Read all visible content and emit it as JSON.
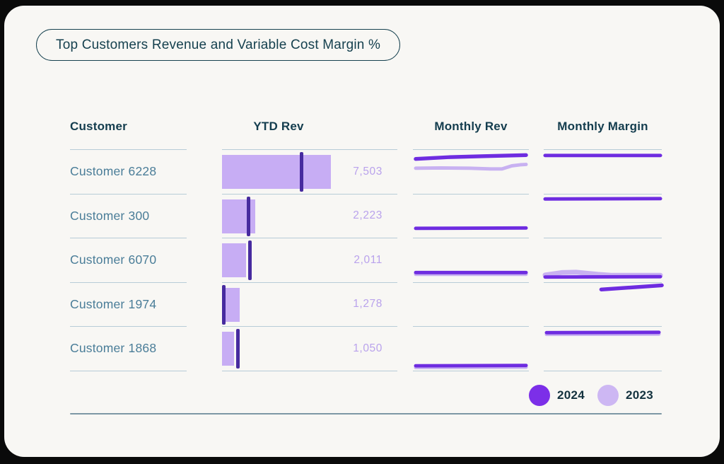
{
  "title": "Top Customers Revenue and Variable Cost Margin %",
  "header": {
    "customer": "Customer",
    "ytd": "YTD Rev",
    "monthly_rev": "Monthly Rev",
    "monthly_margin": "Monthly Margin"
  },
  "legend": {
    "item_2024": "2024",
    "item_2023": "2023"
  },
  "colors": {
    "legend_2024": "#7c2fe8",
    "legend_2023": "#cdb7f3",
    "spark_2024": "#6e2ce0",
    "spark_2023": "#c8b1f1",
    "bar_2023": "#c7adf4",
    "tick_2024": "#472b9f",
    "value_text": "#b9a2ec",
    "teal_dark": "#143d4e",
    "divider": "#b7ccd7"
  },
  "rows": [
    {
      "customer": "Customer 6228",
      "ytd_value": "7,503",
      "bar_w": "62%",
      "tick_x": "44.5%",
      "rev": [
        {
          "year": "2023",
          "w": 5,
          "pts": [
            [
              4,
              26.5
            ],
            [
              40,
              26
            ],
            [
              80,
              26.5
            ],
            [
              110,
              27.5
            ],
            [
              126,
              27.5
            ],
            [
              140,
              23
            ],
            [
              152,
              21.5
            ],
            [
              160,
              21
            ]
          ]
        },
        {
          "year": "2024",
          "w": 5.5,
          "pts": [
            [
              4,
              13
            ],
            [
              50,
              10.5
            ],
            [
              100,
              9
            ],
            [
              160,
              7.5
            ]
          ]
        }
      ],
      "margin": [
        {
          "year": "2024",
          "w": 5,
          "pts": [
            [
              2,
              8
            ],
            [
              162,
              8
            ]
          ]
        }
      ]
    },
    {
      "customer": "Customer 300",
      "ytd_value": "2,223",
      "bar_w": "19%",
      "tick_x": "14%",
      "rev": [
        {
          "year": "2024",
          "w": 5,
          "pts": [
            [
              4,
              49
            ],
            [
              160,
              48.5
            ]
          ]
        }
      ],
      "margin": [
        {
          "year": "2024",
          "w": 5,
          "pts": [
            [
              2,
              6.5
            ],
            [
              162,
              6
            ]
          ]
        }
      ]
    },
    {
      "customer": "Customer 6070",
      "ytd_value": "2,011",
      "bar_w": "13.8%",
      "tick_x": "14.8%",
      "rev": [
        {
          "year": "2023",
          "w": 5,
          "pts": [
            [
              4,
              52
            ],
            [
              160,
              52
            ]
          ]
        },
        {
          "year": "2024",
          "w": 5,
          "pts": [
            [
              4,
              49.5
            ],
            [
              160,
              49.5
            ]
          ]
        }
      ],
      "margin": [
        {
          "year": "2023",
          "w": 7,
          "pts": [
            [
              2,
              53
            ],
            [
              25,
              49.5
            ],
            [
              45,
              49
            ],
            [
              75,
              52
            ],
            [
              95,
              53.5
            ],
            [
              162,
              53.5
            ]
          ]
        },
        {
          "year": "2024",
          "w": 5,
          "pts": [
            [
              2,
              56
            ],
            [
              162,
              55.5
            ]
          ]
        }
      ]
    },
    {
      "customer": "Customer 1974",
      "ytd_value": "1,278",
      "bar_w": "10%",
      "tick_x": "0.2%",
      "rev": [],
      "margin": [
        {
          "year": "2024",
          "w": 5.5,
          "pts": [
            [
              80,
              9.5
            ],
            [
              164,
              3.5
            ]
          ]
        }
      ]
    },
    {
      "customer": "Customer 1868",
      "ytd_value": "1,050",
      "bar_w": "7%",
      "tick_x": "8%",
      "rev": [
        {
          "year": "2023",
          "w": 5,
          "pts": [
            [
              4,
              59
            ],
            [
              160,
              58.5
            ]
          ]
        },
        {
          "year": "2024",
          "w": 5,
          "pts": [
            [
              4,
              56.5
            ],
            [
              160,
              56
            ]
          ]
        }
      ],
      "margin": [
        {
          "year": "2023",
          "w": 5,
          "pts": [
            [
              4,
              11
            ],
            [
              160,
              10.5
            ]
          ]
        },
        {
          "year": "2024",
          "w": 5,
          "pts": [
            [
              4,
              8.5
            ],
            [
              160,
              8
            ]
          ]
        }
      ]
    }
  ],
  "chart_data": {
    "type": "table",
    "title": "Top Customers Revenue and Variable Cost Margin %",
    "columns": [
      "Customer",
      "YTD Rev",
      "Monthly Rev",
      "Monthly Margin"
    ],
    "legend": [
      "2024",
      "2023"
    ],
    "ytd_rev_note": "light bar = 2023 YTD revenue with dark 2024 marker tick; bars scaled to max 7503",
    "rows": [
      {
        "customer": "Customer 6228",
        "ytd_rev": 7503,
        "monthly_rev_trend": {
          "2024": "high, rising slightly",
          "2023": "mid, dip then uptick at end"
        },
        "monthly_margin_trend": {
          "2024": "high, flat"
        }
      },
      {
        "customer": "Customer 300",
        "ytd_rev": 2223,
        "monthly_rev_trend": {
          "2024": "low, flat"
        },
        "monthly_margin_trend": {
          "2024": "high, flat"
        }
      },
      {
        "customer": "Customer 6070",
        "ytd_rev": 2011,
        "monthly_rev_trend": {
          "2024": "low, flat",
          "2023": "low, flat"
        },
        "monthly_margin_trend": {
          "2024": "low, flat",
          "2023": "low with mid-left bump"
        }
      },
      {
        "customer": "Customer 1974",
        "ytd_rev": 1278,
        "monthly_rev_trend": {},
        "monthly_margin_trend": {
          "2024": "right half only, rising to high"
        }
      },
      {
        "customer": "Customer 1868",
        "ytd_rev": 1050,
        "monthly_rev_trend": {
          "2024": "low, flat",
          "2023": "low, flat"
        },
        "monthly_margin_trend": {
          "2024": "high, flat",
          "2023": "high, flat"
        }
      }
    ]
  }
}
